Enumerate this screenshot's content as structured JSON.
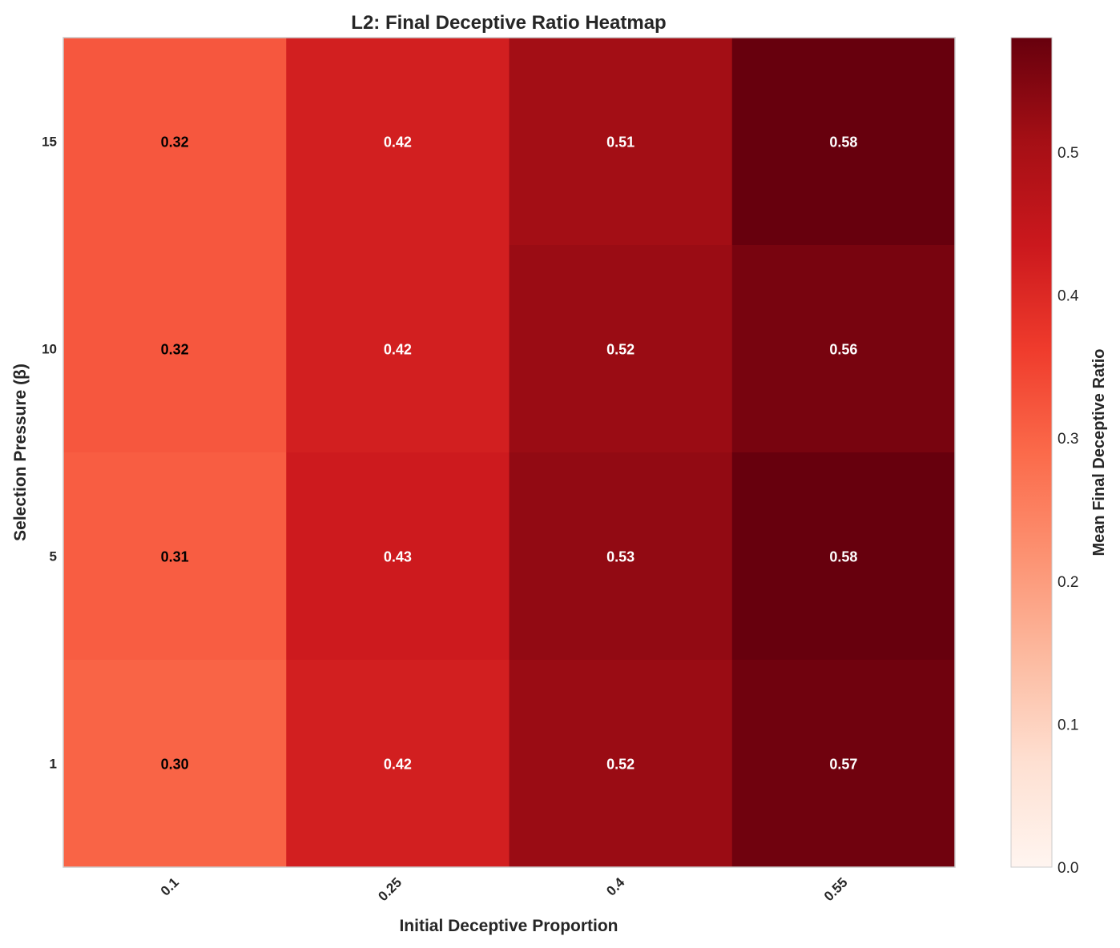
{
  "chart_data": {
    "type": "heatmap",
    "title": "L2: Final Deceptive Ratio Heatmap",
    "xlabel": "Initial Deceptive Proportion",
    "ylabel": "Selection Pressure (β)",
    "x_categories": [
      "0.1",
      "0.25",
      "0.4",
      "0.55"
    ],
    "y_categories": [
      "15",
      "10",
      "5",
      "1"
    ],
    "values": [
      [
        0.32,
        0.42,
        0.51,
        0.58
      ],
      [
        0.32,
        0.42,
        0.52,
        0.56
      ],
      [
        0.31,
        0.43,
        0.53,
        0.58
      ],
      [
        0.3,
        0.42,
        0.52,
        0.57
      ]
    ],
    "value_labels": [
      [
        "0.32",
        "0.42",
        "0.51",
        "0.58"
      ],
      [
        "0.32",
        "0.42",
        "0.52",
        "0.56"
      ],
      [
        "0.31",
        "0.43",
        "0.53",
        "0.58"
      ],
      [
        "0.30",
        "0.42",
        "0.52",
        "0.57"
      ]
    ],
    "colorbar": {
      "label": "Mean Final Deceptive Ratio",
      "range": [
        0,
        0.58
      ],
      "ticks": [
        "0.0",
        "0.1",
        "0.2",
        "0.3",
        "0.4",
        "0.5"
      ],
      "colormap": "Reds"
    },
    "grid": false
  }
}
